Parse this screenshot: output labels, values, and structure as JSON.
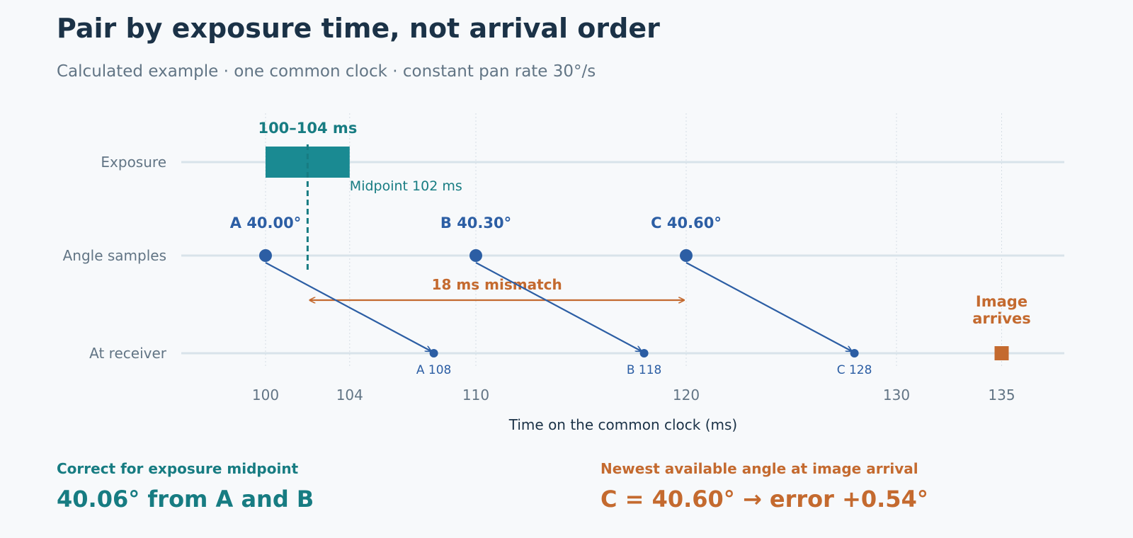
{
  "title": "Pair by exposure time, not arrival order",
  "subtitle": "Calculated example · one common clock · constant pan rate 30°/s",
  "colors": {
    "teal": "#177c82",
    "teal_fill": "#1a8a92",
    "blue": "#2c5ea4",
    "orange": "#c46a2f",
    "axis_text": "#627585",
    "dark": "#1b3247",
    "lane": "#d8e3ea"
  },
  "chart_data": {
    "type": "timeline",
    "xlabel": "Time on the common clock (ms)",
    "xlim": [
      96,
      137.5
    ],
    "ticks": [
      {
        "value": 100,
        "label": "100"
      },
      {
        "value": 104,
        "label": "104"
      },
      {
        "value": 110,
        "label": "110"
      },
      {
        "value": 120,
        "label": "120"
      },
      {
        "value": 130,
        "label": "130"
      },
      {
        "value": 135,
        "label": "135"
      }
    ],
    "gridlines": [
      100,
      104,
      110,
      120,
      130,
      135
    ],
    "lanes": [
      "Exposure",
      "Angle samples",
      "At receiver"
    ],
    "exposure": {
      "start": 100,
      "end": 104,
      "midpoint": 102,
      "range_label": "100–104 ms",
      "midpoint_label": "Midpoint 102 ms"
    },
    "samples": [
      {
        "name": "A",
        "time": 100,
        "angle": 40.0,
        "label": "A  40.00°",
        "arrival": 108,
        "arrival_label": "A 108"
      },
      {
        "name": "B",
        "time": 110,
        "angle": 40.3,
        "label": "B  40.30°",
        "arrival": 118,
        "arrival_label": "B 118"
      },
      {
        "name": "C",
        "time": 120,
        "angle": 40.6,
        "label": "C  40.60°",
        "arrival": 128,
        "arrival_label": "C 128"
      }
    ],
    "mismatch": {
      "from": 102,
      "to": 120,
      "label": "18 ms mismatch"
    },
    "image_arrival": {
      "time": 135,
      "label_lines": [
        "Image",
        "arrives"
      ]
    }
  },
  "footer": {
    "left": {
      "label": "Correct for exposure midpoint",
      "value": "40.06° from A and B"
    },
    "right": {
      "label": "Newest available angle at image arrival",
      "value": "C = 40.60°  →  error +0.54°"
    }
  }
}
